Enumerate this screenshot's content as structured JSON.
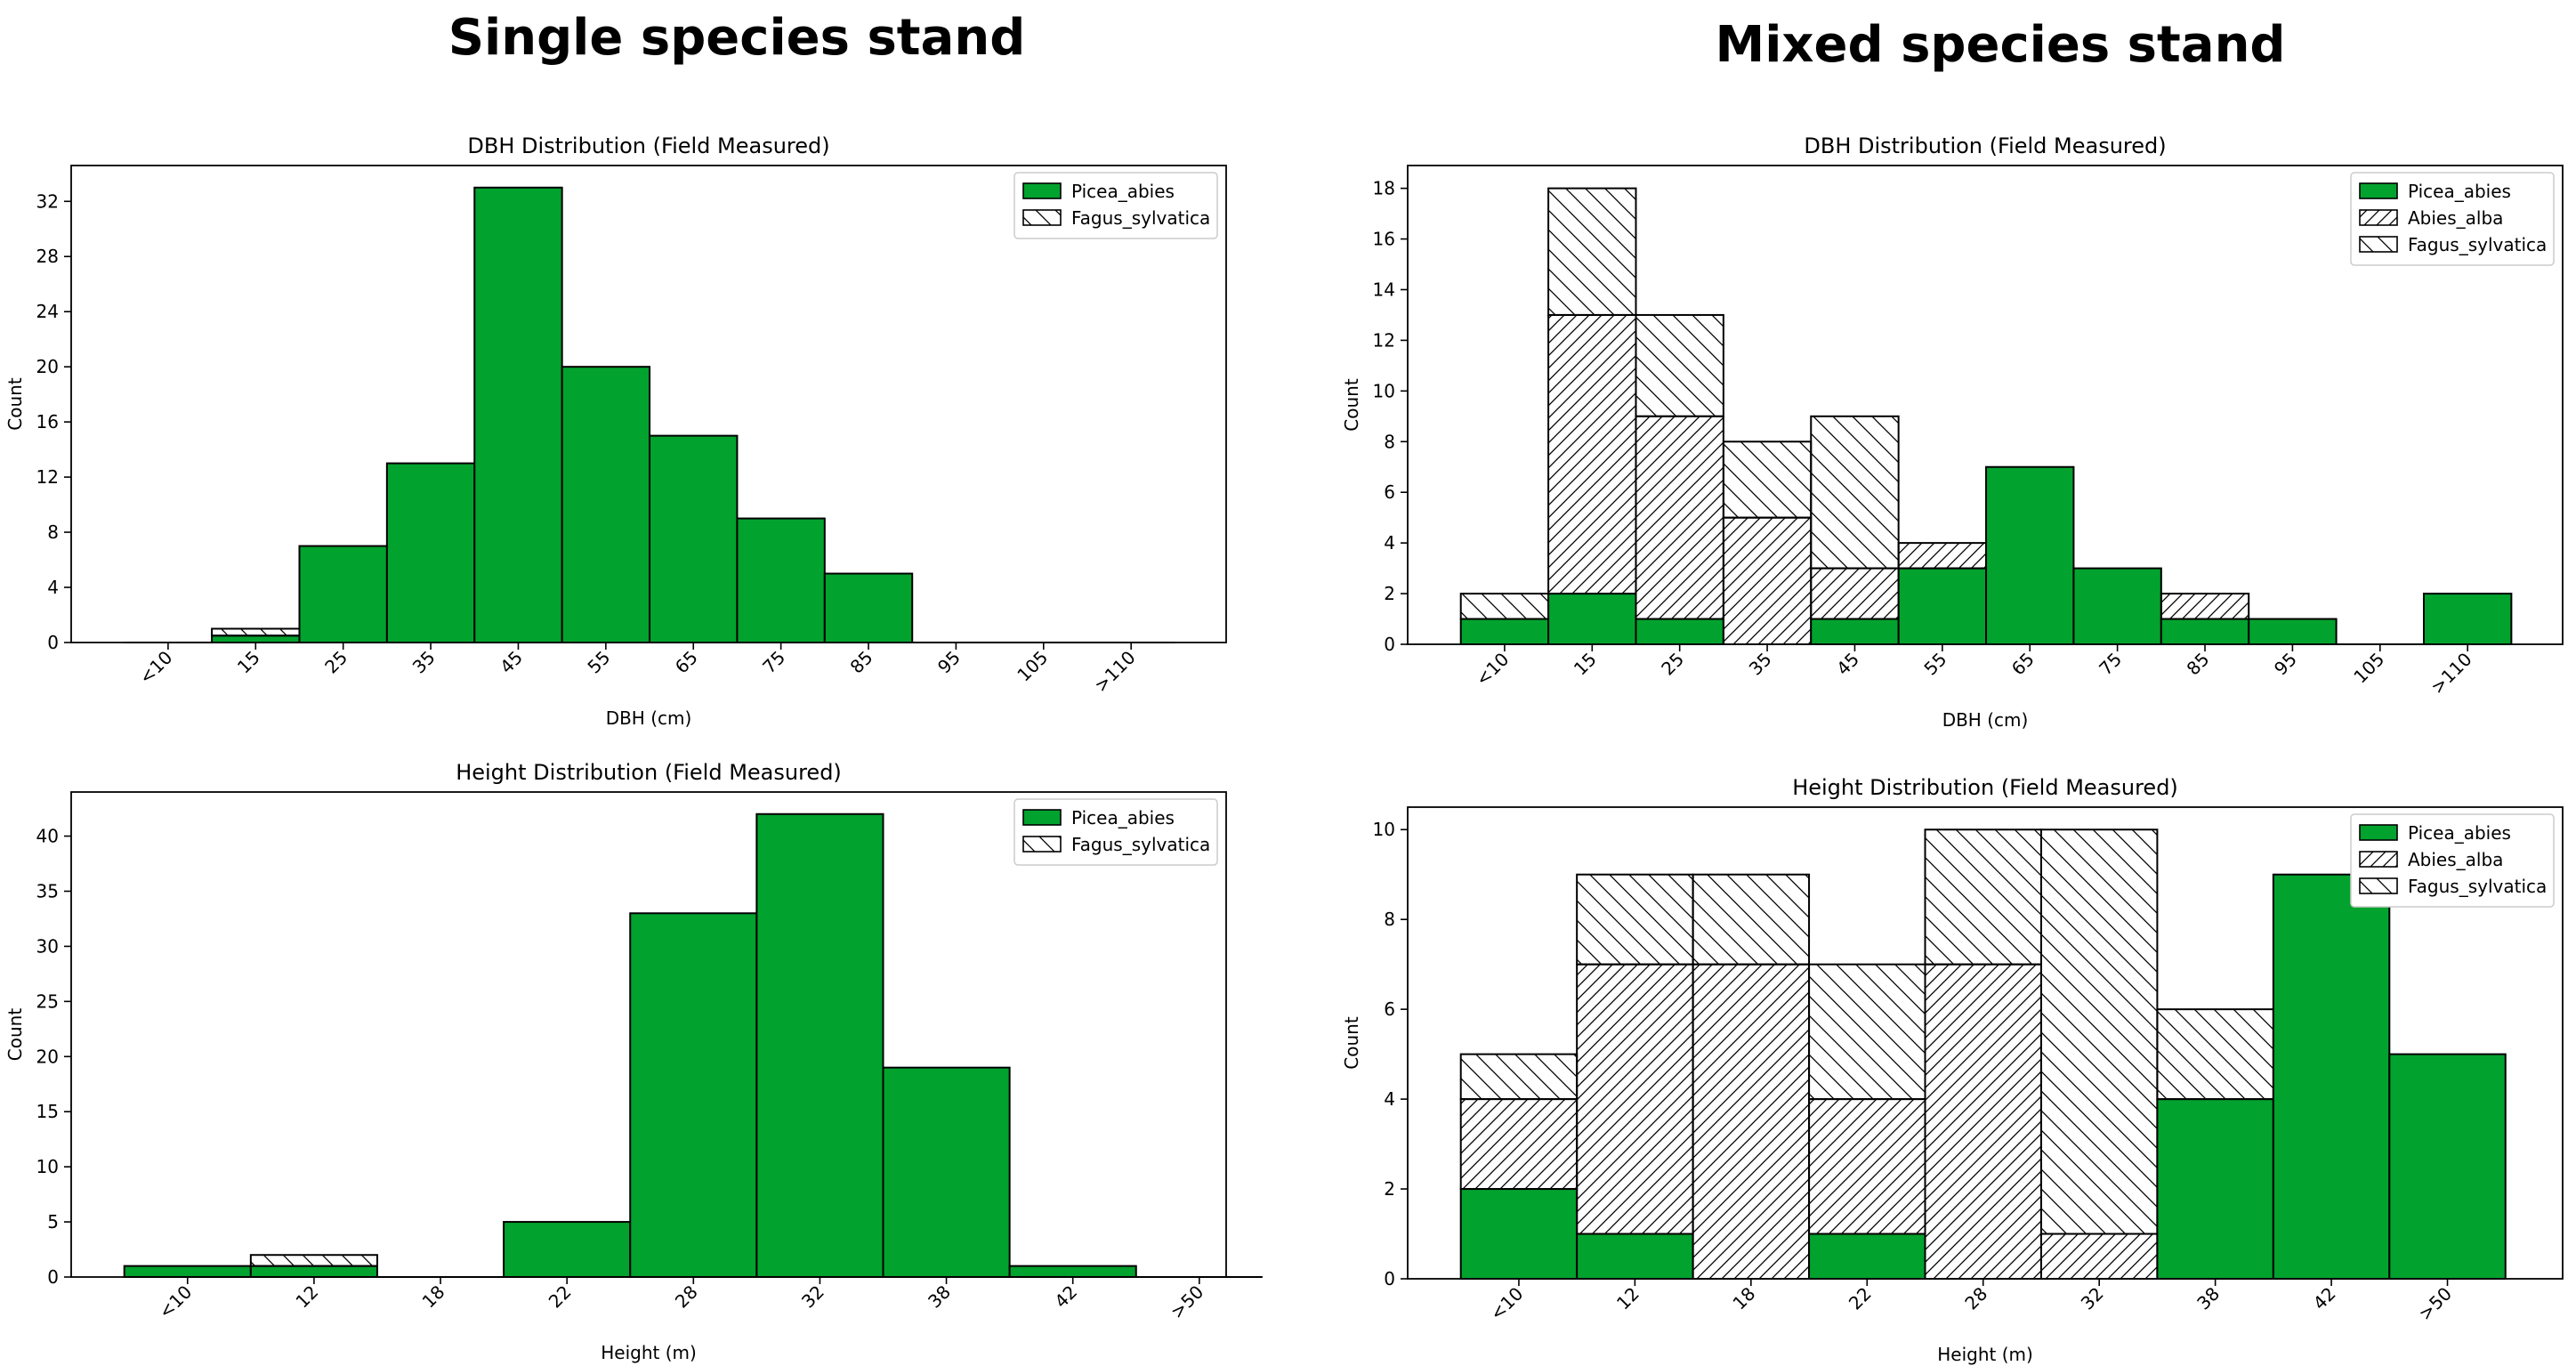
{
  "headings": {
    "left": "Single species stand",
    "right": "Mixed species stand"
  },
  "colors": {
    "picea": "#02a22e",
    "outline": "#000000",
    "background": "#ffffff"
  },
  "chart_data": [
    {
      "type": "bar",
      "stacked": true,
      "title": "DBH Distribution (Field Measured)",
      "xlabel": "DBH (cm)",
      "ylabel": "Count",
      "ylim": [
        0,
        34.6
      ],
      "yticks": [
        0,
        4,
        8,
        12,
        16,
        20,
        24,
        28,
        32
      ],
      "legend_position": "top-right",
      "categories": [
        "<10",
        "15",
        "25",
        "35",
        "45",
        "55",
        "65",
        "75",
        "85",
        "95",
        "105",
        ">110"
      ],
      "series": [
        {
          "name": "Picea_abies",
          "pattern": "solid",
          "values": [
            0,
            0.5,
            7,
            13,
            33,
            20,
            15,
            9,
            5,
            0,
            0,
            0
          ]
        },
        {
          "name": "Fagus_sylvatica",
          "pattern": "backslash",
          "values": [
            0,
            0.5,
            0,
            0,
            0,
            0,
            0,
            0,
            0,
            0,
            0,
            0
          ]
        }
      ]
    },
    {
      "type": "bar",
      "stacked": true,
      "title": "Height Distribution (Field Measured)",
      "xlabel": "Height (m)",
      "ylabel": "Count",
      "ylim": [
        0,
        44
      ],
      "yticks": [
        0,
        5,
        10,
        15,
        20,
        25,
        30,
        35,
        40
      ],
      "legend_position": "top-right",
      "categories": [
        "<10",
        "12",
        "18",
        "22",
        "28",
        "32",
        "38",
        "42",
        ">50"
      ],
      "series": [
        {
          "name": "Picea_abies",
          "pattern": "solid",
          "values": [
            1,
            1,
            0,
            5,
            33,
            42,
            19,
            1,
            0
          ]
        },
        {
          "name": "Fagus_sylvatica",
          "pattern": "backslash",
          "values": [
            0,
            1,
            0,
            0,
            0,
            0,
            0,
            0,
            0
          ]
        }
      ]
    },
    {
      "type": "bar",
      "stacked": true,
      "title": "DBH Distribution (Field Measured)",
      "xlabel": "DBH (cm)",
      "ylabel": "Count",
      "ylim": [
        0,
        18.9
      ],
      "yticks": [
        0,
        2,
        4,
        6,
        8,
        10,
        12,
        14,
        16,
        18
      ],
      "legend_position": "top-right",
      "categories": [
        "<10",
        "15",
        "25",
        "35",
        "45",
        "55",
        "65",
        "75",
        "85",
        "95",
        "105",
        ">110"
      ],
      "series": [
        {
          "name": "Picea_abies",
          "pattern": "solid",
          "values": [
            1,
            2,
            1,
            0,
            1,
            3,
            7,
            3,
            1,
            1,
            0,
            2
          ]
        },
        {
          "name": "Abies_alba",
          "pattern": "slash",
          "values": [
            0,
            11,
            8,
            5,
            2,
            1,
            0,
            0,
            1,
            0,
            0,
            0
          ]
        },
        {
          "name": "Fagus_sylvatica",
          "pattern": "backslash",
          "values": [
            1,
            5,
            4,
            3,
            6,
            0,
            0,
            0,
            0,
            0,
            0,
            0
          ]
        }
      ]
    },
    {
      "type": "bar",
      "stacked": true,
      "title": "Height Distribution (Field Measured)",
      "xlabel": "Height (m)",
      "ylabel": "Count",
      "ylim": [
        0,
        10.5
      ],
      "yticks": [
        0,
        2,
        4,
        6,
        8,
        10
      ],
      "legend_position": "top-right",
      "categories": [
        "<10",
        "12",
        "18",
        "22",
        "28",
        "32",
        "38",
        "42",
        ">50"
      ],
      "series": [
        {
          "name": "Picea_abies",
          "pattern": "solid",
          "values": [
            2,
            1,
            0,
            1,
            0,
            0,
            4,
            9,
            5
          ]
        },
        {
          "name": "Abies_alba",
          "pattern": "slash",
          "values": [
            2,
            6,
            7,
            3,
            7,
            1,
            0,
            0,
            0
          ]
        },
        {
          "name": "Fagus_sylvatica",
          "pattern": "backslash",
          "values": [
            1,
            2,
            2,
            3,
            3,
            9,
            2,
            0,
            0
          ]
        }
      ]
    }
  ]
}
